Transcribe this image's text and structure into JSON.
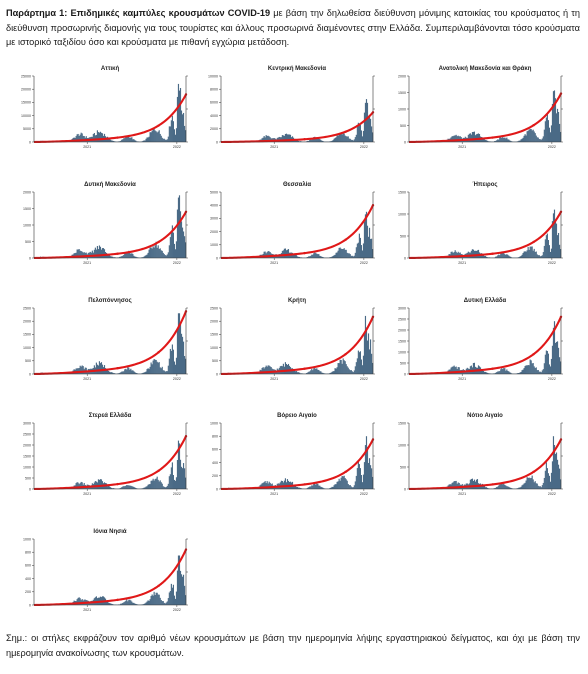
{
  "caption": {
    "lead": "Παράρτημα 1:  Επιδημικές καμπύλες κρουσμάτων COVID-19",
    "text": " με βάση την δηλωθείσα διεύθυνση μόνιμης κατοικίας του κρούσματος ή τη διεύθυνση προσωρινής διαμονής για τους τουρίστες και άλλους προσωρινά διαμένοντες στην Ελλάδα. Συμπεριλαμβάνονται τόσο κρούσματα με ιστορικό ταξιδίου όσο και κρούσματα με πιθανή εγχώρια μετάδοση."
  },
  "footnote": "Σημ.: οι στήλες εκφράζουν τον αριθμό νέων κρουσμάτων με βάση την ημερομηνία λήψης εργαστηριακού δείγματος, και όχι με βάση την ημερομηνία ανακοίνωσης των κρουσμάτων.",
  "colors": {
    "bars": "#4a6a86",
    "line": "#e01818",
    "axis": "#333333"
  },
  "chart_data": [
    {
      "type": "bar",
      "title": "Αττική",
      "ylim": [
        0,
        25000
      ],
      "yticks": [
        0,
        5000,
        10000,
        15000,
        20000,
        25000
      ],
      "peak": 22000,
      "y2lim": [
        0,
        1000000
      ],
      "cum_end": 720000,
      "cum_mid": 280000,
      "mid_label": "",
      "end_label": "",
      "xticks": [
        "2021",
        "2022"
      ]
    },
    {
      "type": "bar",
      "title": "Κεντρική Μακεδονία",
      "ylim": [
        0,
        10000
      ],
      "yticks": [
        0,
        2000,
        4000,
        6000,
        8000,
        10000
      ],
      "peak": 6500,
      "y2lim": [
        0,
        1000000
      ],
      "cum_end": 450000,
      "cum_mid": 150000,
      "mid_label": "",
      "end_label": "",
      "xticks": [
        "2021",
        "2022"
      ]
    },
    {
      "type": "bar",
      "title": "Ανατολική Μακεδονία και Θράκη",
      "ylim": [
        0,
        2000
      ],
      "yticks": [
        0,
        500,
        1000,
        1500,
        2000
      ],
      "peak": 1600,
      "y2lim": [
        0,
        150000
      ],
      "cum_end": 110000,
      "cum_mid": 35000,
      "mid_label": "",
      "end_label": "",
      "xticks": [
        "2021",
        "2022"
      ]
    },
    {
      "type": "bar",
      "title": "Δυτική Μακεδονία",
      "ylim": [
        0,
        2000
      ],
      "yticks": [
        0,
        500,
        1000,
        1500,
        2000
      ],
      "peak": 1900,
      "y2lim": [
        0,
        100000
      ],
      "cum_end": 70000,
      "cum_mid": 22000,
      "mid_label": "",
      "end_label": "",
      "xticks": [
        "2021",
        "2022"
      ]
    },
    {
      "type": "bar",
      "title": "Θεσσαλία",
      "ylim": [
        0,
        5000
      ],
      "yticks": [
        0,
        1000,
        2000,
        3000,
        4000,
        5000
      ],
      "peak": 3500,
      "y2lim": [
        0,
        200000
      ],
      "cum_end": 160000,
      "cum_mid": 52000,
      "mid_label": "",
      "end_label": "",
      "xticks": [
        "2021",
        "2022"
      ]
    },
    {
      "type": "bar",
      "title": "Ήπειρος",
      "ylim": [
        0,
        1500
      ],
      "yticks": [
        0,
        500,
        1000,
        1500
      ],
      "peak": 1100,
      "y2lim": [
        0,
        100000
      ],
      "cum_end": 70000,
      "cum_mid": 18000,
      "mid_label": "",
      "end_label": "",
      "xticks": [
        "2021",
        "2022"
      ]
    },
    {
      "type": "bar",
      "title": "Πελοπόννησος",
      "ylim": [
        0,
        2500
      ],
      "yticks": [
        0,
        500,
        1000,
        1500,
        2000,
        2500
      ],
      "peak": 2300,
      "y2lim": [
        0,
        100000
      ],
      "cum_end": 95000,
      "cum_mid": 28000,
      "mid_label": "",
      "end_label": "",
      "xticks": [
        "2021",
        "2022"
      ]
    },
    {
      "type": "bar",
      "title": "Κρήτη",
      "ylim": [
        0,
        2500
      ],
      "yticks": [
        0,
        500,
        1000,
        1500,
        2000,
        2500
      ],
      "peak": 2200,
      "y2lim": [
        0,
        150000
      ],
      "cum_end": 130000,
      "cum_mid": 30000,
      "mid_label": "",
      "end_label": "",
      "xticks": [
        "2021",
        "2022"
      ]
    },
    {
      "type": "bar",
      "title": "Δυτική Ελλάδα",
      "ylim": [
        0,
        3000
      ],
      "yticks": [
        0,
        500,
        1000,
        1500,
        2000,
        2500,
        3000
      ],
      "peak": 2400,
      "y2lim": [
        0,
        150000
      ],
      "cum_end": 130000,
      "cum_mid": 40000,
      "mid_label": "",
      "end_label": "",
      "xticks": [
        "2021",
        "2022"
      ]
    },
    {
      "type": "bar",
      "title": "Στερεά Ελλάδα",
      "ylim": [
        0,
        3000
      ],
      "yticks": [
        0,
        500,
        1000,
        1500,
        2000,
        2500,
        3000
      ],
      "peak": 2200,
      "y2lim": [
        0,
        150000
      ],
      "cum_end": 120000,
      "cum_mid": 35000,
      "mid_label": "",
      "end_label": "",
      "xticks": [
        "2021",
        "2022"
      ]
    },
    {
      "type": "bar",
      "title": "Βόρειο Αιγαίο",
      "ylim": [
        0,
        1000
      ],
      "yticks": [
        0,
        200,
        400,
        600,
        800,
        1000
      ],
      "peak": 800,
      "y2lim": [
        0,
        40000
      ],
      "cum_end": 30000,
      "cum_mid": 8000,
      "mid_label": "",
      "end_label": "",
      "xticks": [
        "2021",
        "2022"
      ]
    },
    {
      "type": "bar",
      "title": "Νότιο Αιγαίο",
      "ylim": [
        0,
        1500
      ],
      "yticks": [
        0,
        500,
        1000,
        1500
      ],
      "peak": 1200,
      "y2lim": [
        0,
        100000
      ],
      "cum_end": 75000,
      "cum_mid": 24000,
      "mid_label": "",
      "end_label": "",
      "xticks": [
        "2021",
        "2022"
      ]
    },
    {
      "type": "bar",
      "title": "Ιόνια Νησιά",
      "ylim": [
        0,
        1000
      ],
      "yticks": [
        0,
        200,
        400,
        600,
        800,
        1000
      ],
      "peak": 750,
      "y2lim": [
        0,
        50000
      ],
      "cum_end": 42000,
      "cum_mid": 10000,
      "mid_label": "",
      "end_label": "",
      "xticks": [
        "2021",
        "2022"
      ]
    }
  ]
}
